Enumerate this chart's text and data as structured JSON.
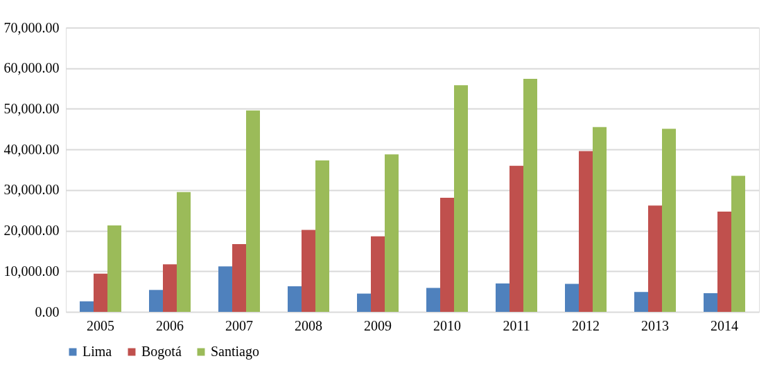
{
  "chart_data": {
    "type": "bar",
    "categories": [
      "2005",
      "2006",
      "2007",
      "2008",
      "2009",
      "2010",
      "2011",
      "2012",
      "2013",
      "2014"
    ],
    "series": [
      {
        "name": "Lima",
        "color": "#4f81bd",
        "values": [
          2600,
          5400,
          11200,
          6300,
          4500,
          5900,
          7000,
          6900,
          4900,
          4600
        ]
      },
      {
        "name": "Bogotá",
        "color": "#c0504d",
        "values": [
          9400,
          11700,
          16700,
          20200,
          18600,
          28100,
          36000,
          39600,
          26200,
          24700
        ]
      },
      {
        "name": "Santiago",
        "color": "#9bbb59",
        "values": [
          21300,
          29500,
          49600,
          37300,
          38800,
          55800,
          57400,
          45500,
          45100,
          33500
        ]
      }
    ],
    "ylim": [
      0,
      70000
    ],
    "yticks": [
      {
        "value": 0,
        "label": "0.00"
      },
      {
        "value": 10000,
        "label": "10,000.00"
      },
      {
        "value": 20000,
        "label": "20,000.00"
      },
      {
        "value": 30000,
        "label": "30,000.00"
      },
      {
        "value": 40000,
        "label": "40,000.00"
      },
      {
        "value": 50000,
        "label": "50,000.00"
      },
      {
        "value": 60000,
        "label": "60,000.00"
      },
      {
        "value": 70000,
        "label": "70,000.00"
      }
    ],
    "grid": "y",
    "legend": "bottom"
  }
}
